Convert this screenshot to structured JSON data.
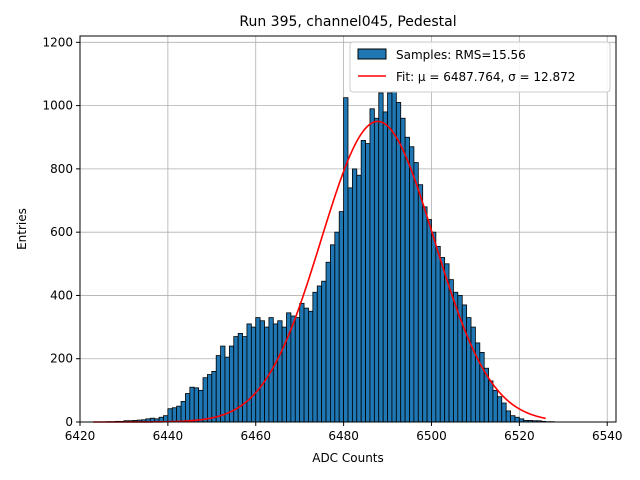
{
  "chart_data": {
    "type": "bar",
    "title": "Run 395, channel045, Pedestal",
    "xlabel": "ADC Counts",
    "ylabel": "Entries",
    "xlim": [
      6420,
      6542
    ],
    "ylim": [
      0,
      1220
    ],
    "xticks": [
      6420,
      6440,
      6460,
      6480,
      6500,
      6520,
      6540
    ],
    "yticks": [
      0,
      200,
      400,
      600,
      800,
      1000,
      1200
    ],
    "grid": true,
    "legend_position": "top-right",
    "colors": {
      "bars": "#1f77b4",
      "bar_edge": "#000000",
      "fit": "#ff0000"
    },
    "series": [
      {
        "name": "Samples: RMS=15.56",
        "type": "histogram",
        "bin_width": 1,
        "bin_starts": [
          6423,
          6424,
          6425,
          6426,
          6427,
          6428,
          6429,
          6430,
          6431,
          6432,
          6433,
          6434,
          6435,
          6436,
          6437,
          6438,
          6439,
          6440,
          6441,
          6442,
          6443,
          6444,
          6445,
          6446,
          6447,
          6448,
          6449,
          6450,
          6451,
          6452,
          6453,
          6454,
          6455,
          6456,
          6457,
          6458,
          6459,
          6460,
          6461,
          6462,
          6463,
          6464,
          6465,
          6466,
          6467,
          6468,
          6469,
          6470,
          6471,
          6472,
          6473,
          6474,
          6475,
          6476,
          6477,
          6478,
          6479,
          6480,
          6481,
          6482,
          6483,
          6484,
          6485,
          6486,
          6487,
          6488,
          6489,
          6490,
          6491,
          6492,
          6493,
          6494,
          6495,
          6496,
          6497,
          6498,
          6499,
          6500,
          6501,
          6502,
          6503,
          6504,
          6505,
          6506,
          6507,
          6508,
          6509,
          6510,
          6511,
          6512,
          6513,
          6514,
          6515,
          6516,
          6517,
          6518,
          6519,
          6520,
          6521,
          6522,
          6523,
          6524,
          6525,
          6526,
          6527,
          6528,
          6529,
          6530,
          6531,
          6532,
          6533,
          6534,
          6535,
          6536,
          6537
        ],
        "counts": [
          0,
          0,
          0,
          1,
          1,
          2,
          2,
          4,
          4,
          5,
          6,
          7,
          10,
          12,
          10,
          15,
          20,
          42,
          45,
          50,
          65,
          90,
          110,
          108,
          100,
          140,
          150,
          160,
          210,
          240,
          205,
          240,
          270,
          280,
          270,
          310,
          300,
          330,
          320,
          300,
          330,
          310,
          320,
          300,
          345,
          335,
          330,
          375,
          360,
          350,
          410,
          430,
          445,
          505,
          560,
          600,
          665,
          1025,
          740,
          800,
          780,
          890,
          880,
          990,
          960,
          1040,
          980,
          1040,
          1045,
          1010,
          960,
          900,
          870,
          820,
          750,
          680,
          640,
          600,
          555,
          520,
          500,
          450,
          410,
          400,
          370,
          330,
          300,
          250,
          220,
          170,
          130,
          100,
          80,
          60,
          35,
          20,
          15,
          10,
          5,
          5,
          4,
          4,
          2,
          1,
          1,
          0,
          0,
          0,
          0,
          0,
          0,
          0,
          0,
          0
        ]
      },
      {
        "name": "Fit: μ = 6487.764, σ = 12.872",
        "type": "line",
        "mu": 6487.764,
        "sigma": 12.872,
        "amplitude": 950,
        "x_range": [
          6423,
          6526
        ]
      }
    ]
  }
}
